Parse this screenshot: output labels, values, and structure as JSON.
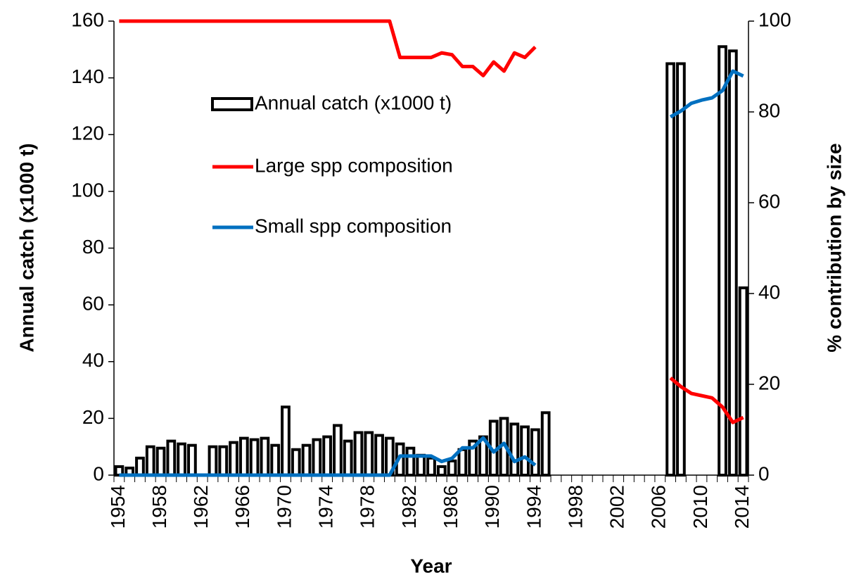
{
  "chart_data": {
    "type": "bar",
    "x_label": "Year",
    "y_label": "Annual catch (x1000 t)",
    "y2_label": "% contribution by size",
    "categories": [
      "1954",
      null,
      null,
      null,
      "1958",
      null,
      null,
      null,
      "1962",
      null,
      null,
      null,
      "1966",
      null,
      null,
      null,
      "1970",
      null,
      null,
      null,
      "1974",
      null,
      null,
      null,
      "1978",
      null,
      null,
      null,
      "1982",
      null,
      null,
      null,
      "1986",
      null,
      null,
      null,
      "1990",
      null,
      null,
      null,
      "1994",
      null,
      null,
      null,
      "1998",
      null,
      null,
      null,
      "2002",
      null,
      null,
      null,
      "2006",
      null,
      null,
      null,
      "2010",
      null,
      null,
      null,
      "2014"
    ],
    "series": [
      {
        "name": "Annual catch (x1000 t)",
        "type": "bar",
        "color": "#000000",
        "values": [
          3,
          2.5,
          6,
          10,
          9.5,
          12,
          11,
          10.5,
          null,
          10,
          10,
          11.5,
          13,
          12.5,
          13,
          10.5,
          24,
          9,
          10.5,
          12.5,
          13.5,
          17.5,
          12,
          15,
          15,
          14,
          13,
          11,
          9.5,
          7,
          6,
          3,
          5,
          9,
          12,
          13.5,
          19,
          20,
          18,
          17,
          16,
          22,
          null,
          null,
          null,
          null,
          null,
          null,
          null,
          null,
          null,
          null,
          null,
          145,
          145,
          null,
          null,
          null,
          151,
          149.5,
          66
        ]
      },
      {
        "name": "Large spp composition",
        "type": "line",
        "axis": "y2",
        "color": "#ff0000",
        "values": [
          100,
          100,
          100,
          100,
          100,
          100,
          100,
          100,
          100,
          100,
          100,
          100,
          100,
          100,
          100,
          100,
          100,
          100,
          100,
          100,
          100,
          100,
          100,
          100,
          100,
          100,
          100,
          92,
          92,
          92,
          92,
          93,
          92.6,
          90,
          90,
          88,
          91,
          89,
          93,
          92,
          94.3,
          null,
          null,
          null,
          null,
          null,
          null,
          null,
          null,
          null,
          null,
          null,
          null,
          21.4,
          19.5,
          18,
          17.5,
          17,
          15,
          11.6,
          12.7
        ]
      },
      {
        "name": "Small spp composition",
        "type": "line",
        "axis": "y2",
        "color": "#0070c0",
        "values": [
          0,
          0,
          0,
          0,
          0,
          0,
          0,
          0,
          0,
          0,
          0,
          0,
          0,
          0,
          0,
          0,
          0,
          0,
          0,
          0,
          0,
          0,
          0,
          0,
          0,
          0,
          0,
          4.2,
          4.2,
          4.2,
          4.2,
          3,
          3.7,
          6,
          6,
          8.2,
          5.1,
          7,
          3,
          4,
          2.2,
          null,
          null,
          null,
          null,
          null,
          null,
          null,
          null,
          null,
          null,
          null,
          null,
          78.9,
          80.2,
          81.9,
          82.6,
          83.1,
          84.7,
          89,
          87.9
        ]
      }
    ],
    "ylim": [
      0,
      160
    ],
    "yticks": [
      0,
      20,
      40,
      60,
      80,
      100,
      120,
      140,
      160
    ],
    "y2lim": [
      0,
      100
    ],
    "y2ticks": [
      0,
      20,
      40,
      60,
      80,
      100
    ]
  }
}
